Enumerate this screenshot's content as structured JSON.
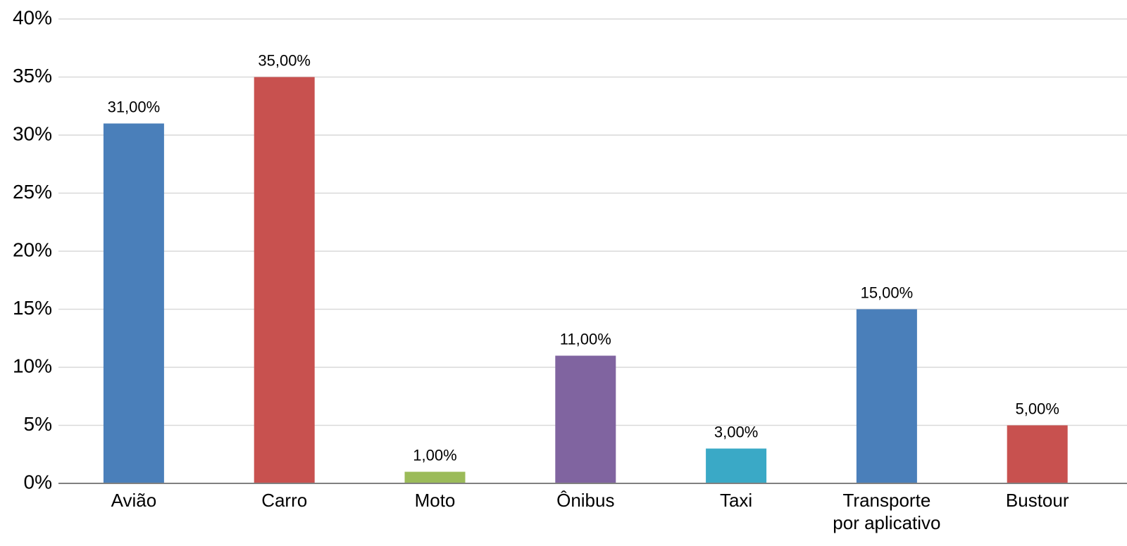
{
  "chart_data": {
    "type": "bar",
    "categories": [
      "Avião",
      "Carro",
      "Moto",
      "Ônibus",
      "Taxi",
      "Transporte por aplicativo",
      "Bustour"
    ],
    "values": [
      31,
      35,
      1,
      11,
      3,
      15,
      5
    ],
    "value_labels": [
      "31,00%",
      "35,00%",
      "1,00%",
      "11,00%",
      "3,00%",
      "15,00%",
      "5,00%"
    ],
    "colors": [
      "#4a7fba",
      "#c8514f",
      "#9bbb59",
      "#8064a0",
      "#3aa9c6",
      "#4a7fba",
      "#c8514f"
    ],
    "ylim": [
      0,
      40
    ],
    "yticks": [
      {
        "value": 0,
        "label": "0%"
      },
      {
        "value": 5,
        "label": "5%"
      },
      {
        "value": 10,
        "label": "10%"
      },
      {
        "value": 15,
        "label": "15%"
      },
      {
        "value": 20,
        "label": "20%"
      },
      {
        "value": 25,
        "label": "25%"
      },
      {
        "value": 30,
        "label": "30%"
      },
      {
        "value": 35,
        "label": "35%"
      },
      {
        "value": 40,
        "label": "40%"
      }
    ],
    "grid": true
  }
}
